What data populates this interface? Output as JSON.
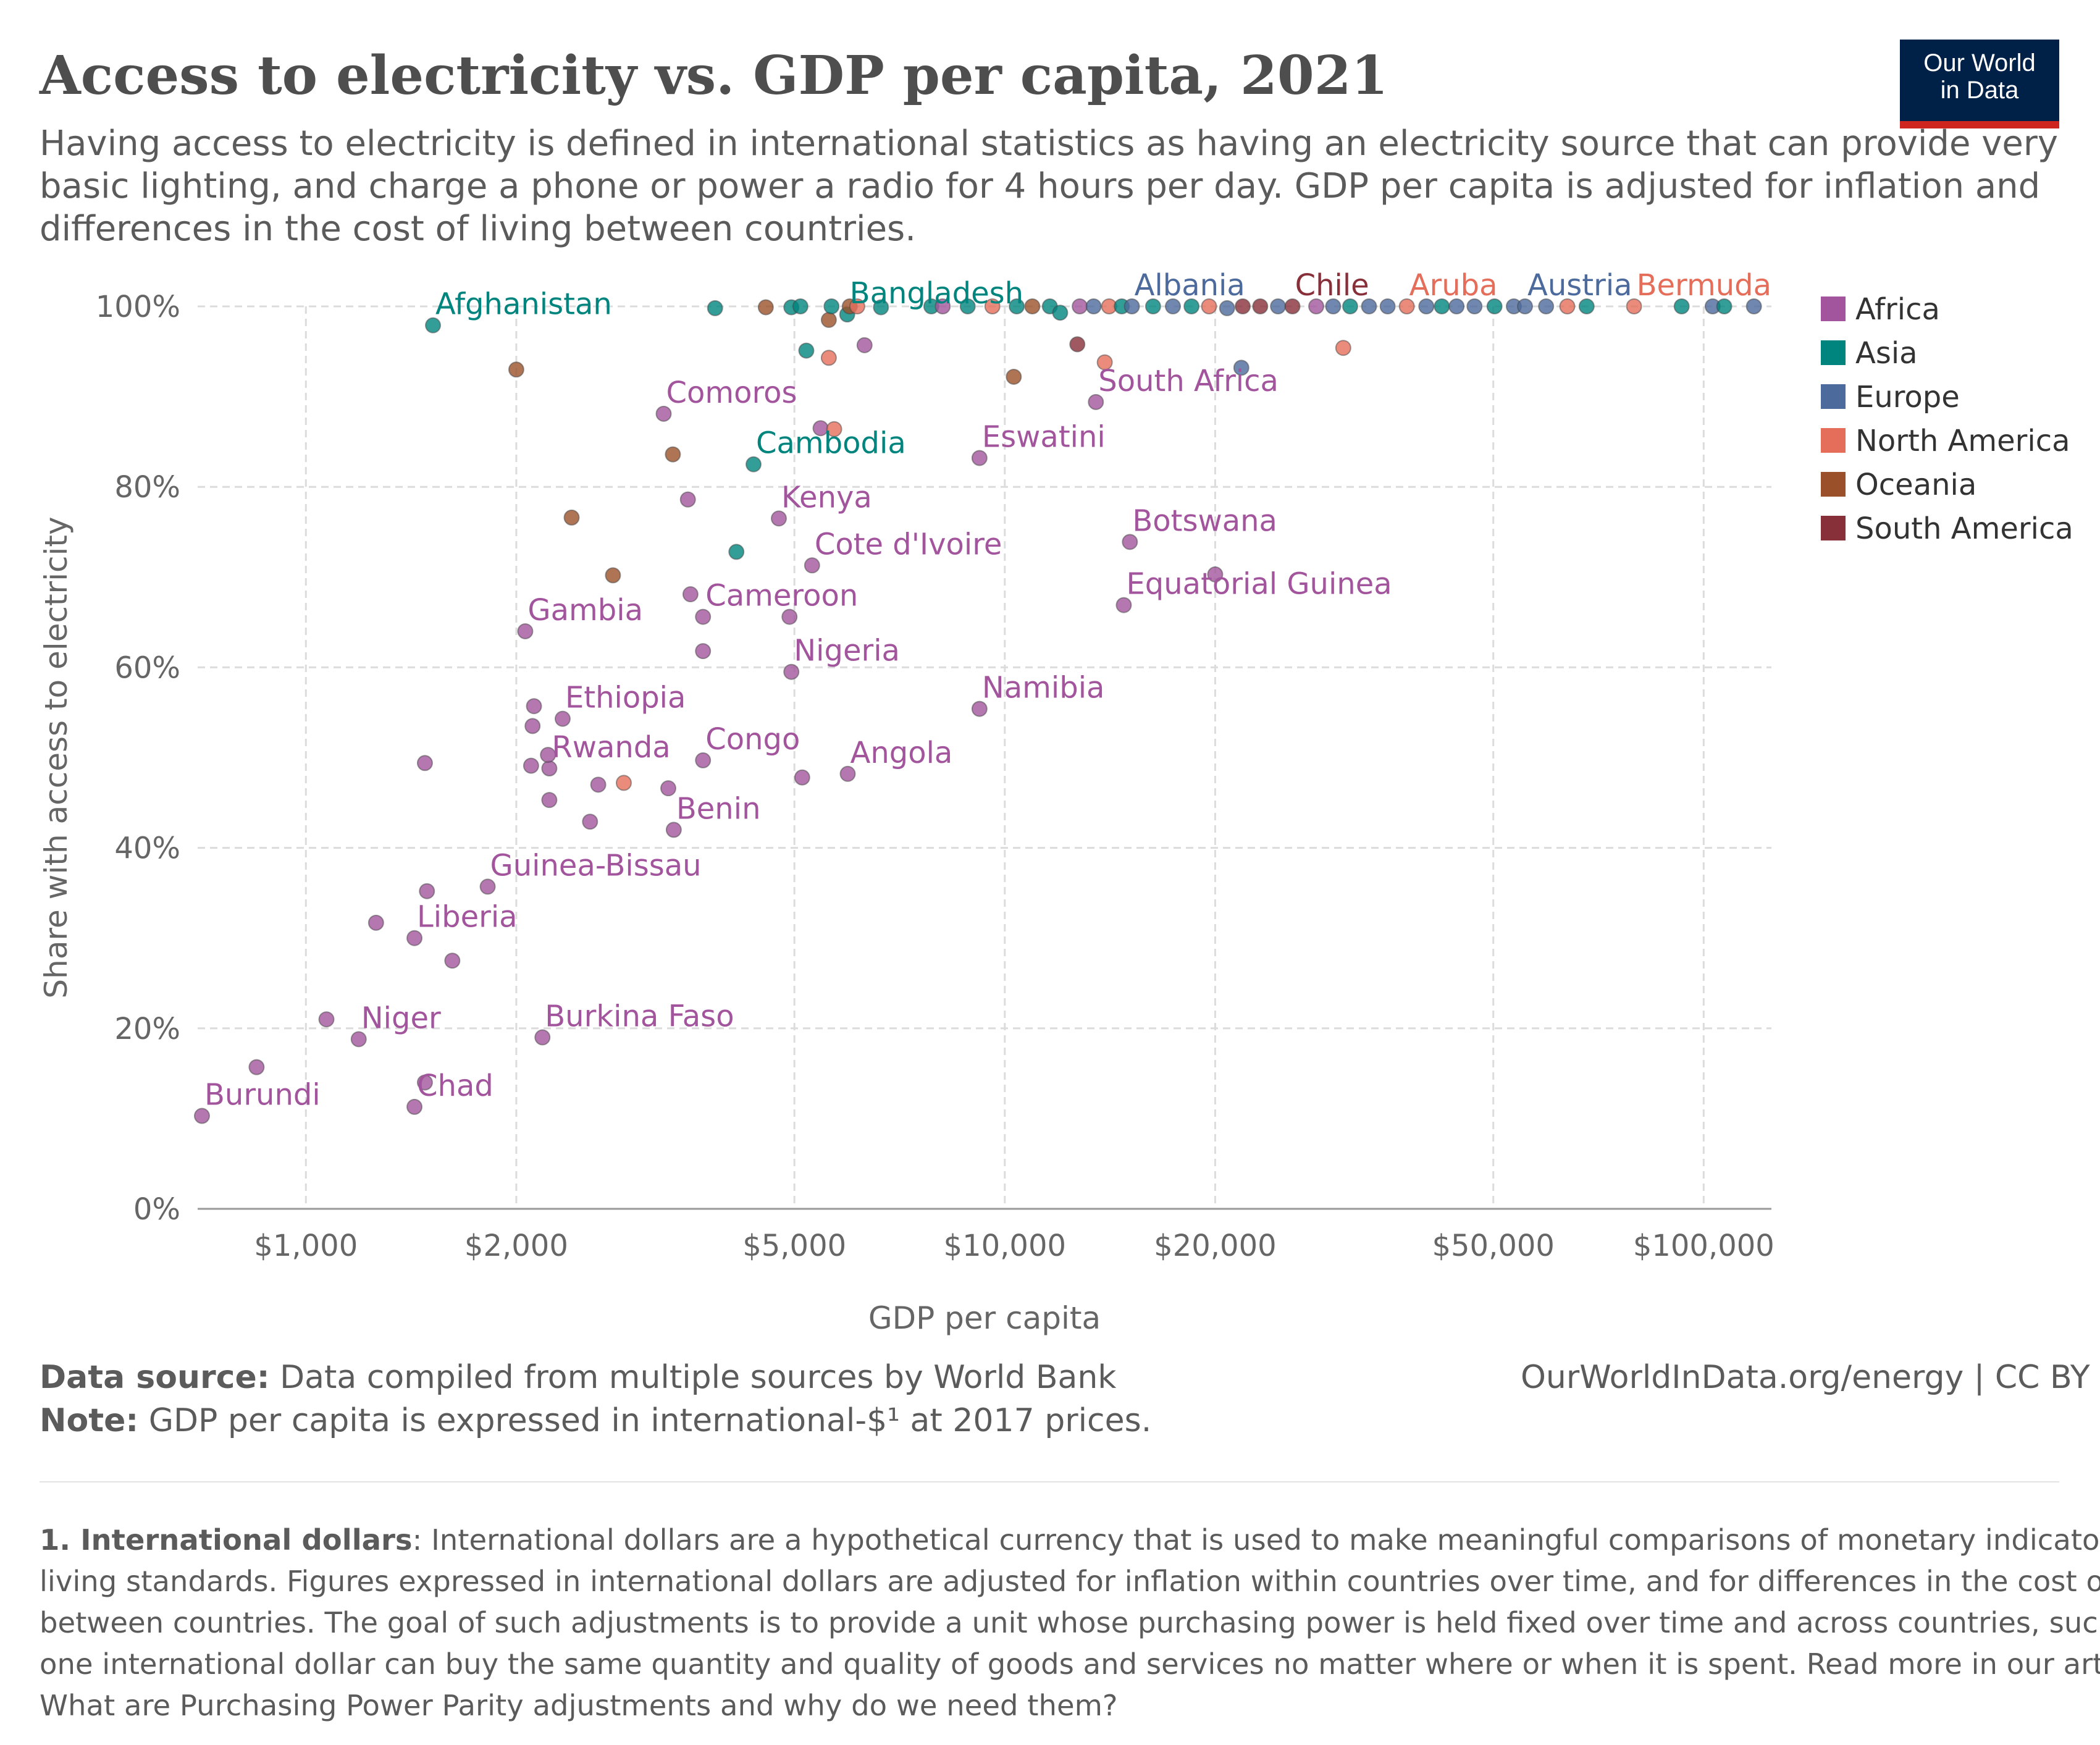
{
  "header": {
    "title": "Access to electricity vs. GDP per capita, 2021",
    "subtitle": "Having access to electricity is defined in international statistics as having an electricity source that can provide very basic lighting, and charge a phone or power a radio for 4 hours per day. GDP per capita is adjusted for inflation and differences in the cost of living between countries."
  },
  "logo": {
    "line1": "Our World",
    "line2": "in Data"
  },
  "footer": {
    "source_label": "Data source:",
    "source_text": "Data compiled from multiple sources by World Bank",
    "note_label": "Note:",
    "note_text": "GDP per capita is expressed in international-$¹ at 2017 prices.",
    "url": "OurWorldInData.org/energy | CC BY",
    "footnote_label": "1. International dollars",
    "footnote_lines": [
      ": International dollars are a hypothetical currency that is used to make meaningful comparisons of monetary indicators of",
      "living standards. Figures expressed in international dollars are adjusted for inflation within countries over time, and for differences in the cost of living",
      "between countries. The goal of such adjustments is to provide a unit whose purchasing power is held fixed over time and across countries, such that",
      "one international dollar can buy the same quantity and quality of goods and services no matter where or when it is spent. Read more in our article:",
      "What are Purchasing Power Parity adjustments and why do we need them?"
    ]
  },
  "chart_data": {
    "type": "scatter",
    "title": "Access to electricity vs. GDP per capita, 2021",
    "xlabel": "GDP per capita",
    "ylabel": "Share with access to electricity",
    "x_scale": "log",
    "xlim": [
      700,
      125000
    ],
    "ylim": [
      0,
      100
    ],
    "x_ticks": [
      1000,
      2000,
      5000,
      10000,
      20000,
      50000,
      100000
    ],
    "x_tick_labels": [
      "$1,000",
      "$2,000",
      "$5,000",
      "$10,000",
      "$20,000",
      "$50,000",
      "$100,000"
    ],
    "y_ticks": [
      0,
      20,
      40,
      60,
      80,
      100
    ],
    "y_tick_labels": [
      "0%",
      "20%",
      "40%",
      "60%",
      "80%",
      "100%"
    ],
    "grid": true,
    "legend_position": "right",
    "colors": {
      "Africa": "#a2559c",
      "Asia": "#00847e",
      "Europe": "#4c6a9c",
      "North America": "#e56e5a",
      "Oceania": "#9a5129",
      "South America": "#883039"
    },
    "legend": [
      "Africa",
      "Asia",
      "Europe",
      "North America",
      "Oceania",
      "South America"
    ],
    "points": [
      {
        "name": "Burundi",
        "region": "Africa",
        "x": 710,
        "y": 10.3,
        "labeled": true
      },
      {
        "name": "",
        "region": "Africa",
        "x": 850,
        "y": 15.7
      },
      {
        "name": "Niger",
        "region": "Africa",
        "x": 1190,
        "y": 18.8,
        "labeled": true
      },
      {
        "name": "",
        "region": "Africa",
        "x": 1070,
        "y": 21
      },
      {
        "name": "Chad",
        "region": "Africa",
        "x": 1430,
        "y": 11.3,
        "labeled": true
      },
      {
        "name": "",
        "region": "Africa",
        "x": 1480,
        "y": 14
      },
      {
        "name": "Burkina Faso",
        "region": "Africa",
        "x": 2180,
        "y": 19,
        "labeled": true
      },
      {
        "name": "Liberia",
        "region": "Africa",
        "x": 1430,
        "y": 30,
        "labeled": true
      },
      {
        "name": "",
        "region": "Africa",
        "x": 1260,
        "y": 31.7
      },
      {
        "name": "",
        "region": "Africa",
        "x": 1490,
        "y": 35.2
      },
      {
        "name": "",
        "region": "Africa",
        "x": 1620,
        "y": 27.5
      },
      {
        "name": "Guinea-Bissau",
        "region": "Africa",
        "x": 1820,
        "y": 35.7,
        "labeled": true
      },
      {
        "name": "",
        "region": "Africa",
        "x": 1480,
        "y": 49.4
      },
      {
        "name": "",
        "region": "Africa",
        "x": 2230,
        "y": 45.3
      },
      {
        "name": "",
        "region": "Africa",
        "x": 2550,
        "y": 42.9
      },
      {
        "name": "",
        "region": "Africa",
        "x": 2620,
        "y": 47
      },
      {
        "name": "",
        "region": "Africa",
        "x": 3300,
        "y": 46.6
      },
      {
        "name": "Benin",
        "region": "Africa",
        "x": 3360,
        "y": 42,
        "labeled": true
      },
      {
        "name": "",
        "region": "North America",
        "x": 2850,
        "y": 47.2
      },
      {
        "name": "Rwanda",
        "region": "Africa",
        "x": 2230,
        "y": 48.8,
        "labeled": true
      },
      {
        "name": "",
        "region": "Africa",
        "x": 2100,
        "y": 49.1
      },
      {
        "name": "",
        "region": "Africa",
        "x": 2220,
        "y": 50.3
      },
      {
        "name": "",
        "region": "Africa",
        "x": 2110,
        "y": 53.5
      },
      {
        "name": "",
        "region": "Africa",
        "x": 2120,
        "y": 55.7
      },
      {
        "name": "Ethiopia",
        "region": "Africa",
        "x": 2330,
        "y": 54.3,
        "labeled": true
      },
      {
        "name": "Congo",
        "region": "Africa",
        "x": 3700,
        "y": 49.7,
        "labeled": true
      },
      {
        "name": "",
        "region": "Africa",
        "x": 5130,
        "y": 47.8
      },
      {
        "name": "Angola",
        "region": "Africa",
        "x": 5960,
        "y": 48.2,
        "labeled": true
      },
      {
        "name": "Gambia",
        "region": "Africa",
        "x": 2060,
        "y": 64,
        "labeled": true
      },
      {
        "name": "",
        "region": "Africa",
        "x": 3700,
        "y": 61.8
      },
      {
        "name": "Nigeria",
        "region": "Africa",
        "x": 4950,
        "y": 59.5,
        "labeled": true
      },
      {
        "name": "Cameroon",
        "region": "Africa",
        "x": 3700,
        "y": 65.6,
        "labeled": true
      },
      {
        "name": "",
        "region": "Africa",
        "x": 3550,
        "y": 68.1
      },
      {
        "name": "",
        "region": "Africa",
        "x": 4920,
        "y": 65.6
      },
      {
        "name": "Namibia",
        "region": "Africa",
        "x": 9200,
        "y": 55.4,
        "labeled": true
      },
      {
        "name": "",
        "region": "Oceania",
        "x": 2750,
        "y": 70.2
      },
      {
        "name": "",
        "region": "Asia",
        "x": 4130,
        "y": 72.8
      },
      {
        "name": "Cote d'Ivoire",
        "region": "Africa",
        "x": 5300,
        "y": 71.3,
        "labeled": true
      },
      {
        "name": "",
        "region": "Oceania",
        "x": 2400,
        "y": 76.6
      },
      {
        "name": "",
        "region": "Africa",
        "x": 3520,
        "y": 78.6
      },
      {
        "name": "Kenya",
        "region": "Africa",
        "x": 4750,
        "y": 76.5,
        "labeled": true
      },
      {
        "name": "Botswana",
        "region": "Africa",
        "x": 15100,
        "y": 73.9,
        "labeled": true
      },
      {
        "name": "Equatorial Guinea",
        "region": "Africa",
        "x": 14800,
        "y": 66.9,
        "labeled": true
      },
      {
        "name": "",
        "region": "Africa",
        "x": 20000,
        "y": 70.3
      },
      {
        "name": "Cambodia",
        "region": "Asia",
        "x": 4370,
        "y": 82.5,
        "labeled": true
      },
      {
        "name": "",
        "region": "Oceania",
        "x": 3350,
        "y": 83.6
      },
      {
        "name": "Comoros",
        "region": "Africa",
        "x": 3250,
        "y": 88.1,
        "labeled": true
      },
      {
        "name": "",
        "region": "Africa",
        "x": 5450,
        "y": 86.5
      },
      {
        "name": "",
        "region": "North America",
        "x": 5700,
        "y": 86.4
      },
      {
        "name": "Eswatini",
        "region": "Africa",
        "x": 9200,
        "y": 83.2,
        "labeled": true
      },
      {
        "name": "",
        "region": "Oceania",
        "x": 2000,
        "y": 93
      },
      {
        "name": "Afghanistan",
        "region": "Asia",
        "x": 1520,
        "y": 97.9,
        "labeled": true
      },
      {
        "name": "",
        "region": "Oceania",
        "x": 5600,
        "y": 98.5
      },
      {
        "name": "",
        "region": "Asia",
        "x": 5200,
        "y": 95.1
      },
      {
        "name": "",
        "region": "North America",
        "x": 5600,
        "y": 94.3
      },
      {
        "name": "",
        "region": "Africa",
        "x": 6300,
        "y": 95.7
      },
      {
        "name": "Bangladesh",
        "region": "Asia",
        "x": 5950,
        "y": 99.1,
        "labeled": true
      },
      {
        "name": "",
        "region": "Oceania",
        "x": 10300,
        "y": 92.2
      },
      {
        "name": "",
        "region": "South America",
        "x": 12700,
        "y": 95.8
      },
      {
        "name": "",
        "region": "North America",
        "x": 13900,
        "y": 93.8
      },
      {
        "name": "South Africa",
        "region": "Africa",
        "x": 13500,
        "y": 89.4,
        "labeled": true
      },
      {
        "name": "",
        "region": "Europe",
        "x": 21800,
        "y": 93.2
      },
      {
        "name": "",
        "region": "North America",
        "x": 30500,
        "y": 95.4
      },
      {
        "name": "",
        "region": "Asia",
        "x": 3850,
        "y": 99.8
      },
      {
        "name": "",
        "region": "Oceania",
        "x": 4550,
        "y": 99.9
      },
      {
        "name": "",
        "region": "Asia",
        "x": 4950,
        "y": 99.9
      },
      {
        "name": "",
        "region": "Asia",
        "x": 5100,
        "y": 100
      },
      {
        "name": "",
        "region": "Asia",
        "x": 5650,
        "y": 100
      },
      {
        "name": "",
        "region": "Oceania",
        "x": 6000,
        "y": 100
      },
      {
        "name": "",
        "region": "North America",
        "x": 6150,
        "y": 100
      },
      {
        "name": "",
        "region": "Asia",
        "x": 6650,
        "y": 99.9
      },
      {
        "name": "",
        "region": "Asia",
        "x": 7850,
        "y": 100
      },
      {
        "name": "",
        "region": "Africa",
        "x": 8150,
        "y": 100
      },
      {
        "name": "",
        "region": "Asia",
        "x": 8850,
        "y": 100
      },
      {
        "name": "",
        "region": "North America",
        "x": 9600,
        "y": 100
      },
      {
        "name": "",
        "region": "Asia",
        "x": 10400,
        "y": 100
      },
      {
        "name": "",
        "region": "Oceania",
        "x": 10950,
        "y": 100
      },
      {
        "name": "",
        "region": "Asia",
        "x": 11600,
        "y": 100
      },
      {
        "name": "",
        "region": "Asia",
        "x": 12000,
        "y": 99.3
      },
      {
        "name": "",
        "region": "Africa",
        "x": 12800,
        "y": 100
      },
      {
        "name": "",
        "region": "Europe",
        "x": 13400,
        "y": 100
      },
      {
        "name": "",
        "region": "North America",
        "x": 14100,
        "y": 100
      },
      {
        "name": "",
        "region": "Asia",
        "x": 14700,
        "y": 100
      },
      {
        "name": "Albania",
        "region": "Europe",
        "x": 15200,
        "y": 100,
        "labeled": true
      },
      {
        "name": "",
        "region": "Asia",
        "x": 16300,
        "y": 100
      },
      {
        "name": "",
        "region": "Europe",
        "x": 17400,
        "y": 100
      },
      {
        "name": "",
        "region": "Asia",
        "x": 18500,
        "y": 100
      },
      {
        "name": "",
        "region": "North America",
        "x": 19600,
        "y": 100
      },
      {
        "name": "",
        "region": "Europe",
        "x": 20800,
        "y": 99.8
      },
      {
        "name": "",
        "region": "South America",
        "x": 21900,
        "y": 100
      },
      {
        "name": "",
        "region": "South America",
        "x": 23200,
        "y": 100
      },
      {
        "name": "",
        "region": "Europe",
        "x": 24600,
        "y": 100
      },
      {
        "name": "Chile",
        "region": "South America",
        "x": 25800,
        "y": 100,
        "labeled": true
      },
      {
        "name": "",
        "region": "Africa",
        "x": 27900,
        "y": 100
      },
      {
        "name": "",
        "region": "Europe",
        "x": 29500,
        "y": 100
      },
      {
        "name": "",
        "region": "Asia",
        "x": 31200,
        "y": 100
      },
      {
        "name": "",
        "region": "Europe",
        "x": 33200,
        "y": 100
      },
      {
        "name": "",
        "region": "Europe",
        "x": 35300,
        "y": 100
      },
      {
        "name": "Aruba",
        "region": "North America",
        "x": 37600,
        "y": 100,
        "labeled": true
      },
      {
        "name": "",
        "region": "Europe",
        "x": 40100,
        "y": 100
      },
      {
        "name": "",
        "region": "Asia",
        "x": 42200,
        "y": 100
      },
      {
        "name": "",
        "region": "Europe",
        "x": 44300,
        "y": 100
      },
      {
        "name": "",
        "region": "Europe",
        "x": 47000,
        "y": 100
      },
      {
        "name": "",
        "region": "Asia",
        "x": 50200,
        "y": 100
      },
      {
        "name": "",
        "region": "Europe",
        "x": 53500,
        "y": 100
      },
      {
        "name": "Austria",
        "region": "Europe",
        "x": 55500,
        "y": 100,
        "labeled": true
      },
      {
        "name": "",
        "region": "Europe",
        "x": 59500,
        "y": 100
      },
      {
        "name": "",
        "region": "North America",
        "x": 63800,
        "y": 100
      },
      {
        "name": "",
        "region": "Asia",
        "x": 68000,
        "y": 100
      },
      {
        "name": "Bermuda",
        "region": "North America",
        "x": 79500,
        "y": 100,
        "labeled": true
      },
      {
        "name": "",
        "region": "Asia",
        "x": 93000,
        "y": 100
      },
      {
        "name": "",
        "region": "Europe",
        "x": 103000,
        "y": 100
      },
      {
        "name": "",
        "region": "Asia",
        "x": 107000,
        "y": 100
      },
      {
        "name": "",
        "region": "Europe",
        "x": 118000,
        "y": 100
      }
    ]
  }
}
